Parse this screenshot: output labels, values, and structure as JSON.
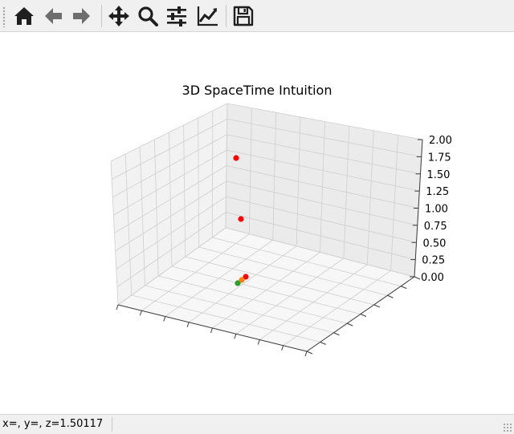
{
  "toolbar": {
    "buttons": [
      {
        "name": "home",
        "icon": "home-icon"
      },
      {
        "name": "back",
        "icon": "arrow-left-icon"
      },
      {
        "name": "forward",
        "icon": "arrow-right-icon"
      },
      {
        "name": "pan",
        "icon": "move-icon"
      },
      {
        "name": "zoom",
        "icon": "magnifier-icon"
      },
      {
        "name": "configure-subplots",
        "icon": "sliders-icon"
      },
      {
        "name": "edit-axis",
        "icon": "line-chart-icon"
      },
      {
        "name": "save",
        "icon": "floppy-disk-icon"
      }
    ],
    "icon_color": "#1f1f1f"
  },
  "status": {
    "coords": "x=, y=, z=1.50117"
  },
  "chart_data": {
    "type": "scatter",
    "title": "3D SpaceTime Intuition",
    "projection": "3d",
    "grid": true,
    "zlim": [
      0,
      2
    ],
    "z_ticks": [
      "0.00",
      "0.25",
      "0.50",
      "0.75",
      "1.00",
      "1.25",
      "1.50",
      "1.75",
      "2.00"
    ],
    "x_ticks_labeled": false,
    "y_ticks_labeled": false,
    "points": [
      {
        "z": 1.75,
        "color": "#ff0000"
      },
      {
        "z": 0.85,
        "color": "#ff0000"
      },
      {
        "z": 0.05,
        "color": "#ff0000"
      },
      {
        "z": 0.02,
        "color": "#ff7f0e"
      },
      {
        "z": 0.0,
        "color": "#2ca02c"
      }
    ]
  }
}
